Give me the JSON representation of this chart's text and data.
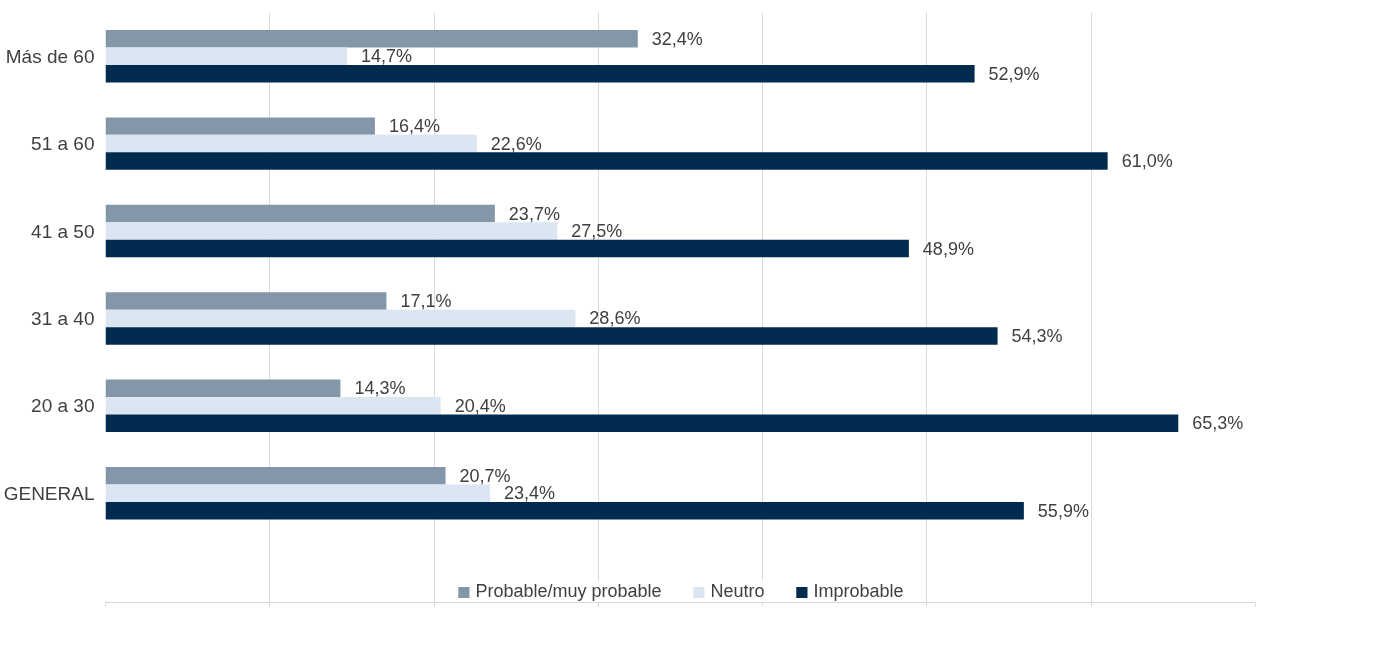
{
  "chart_data": {
    "type": "bar",
    "orientation": "horizontal",
    "categories": [
      "Más de 60",
      "51 a 60",
      "41 a 50",
      "31 a 40",
      "20 a 30",
      "GENERAL"
    ],
    "series": [
      {
        "name": "Probable/muy probable",
        "color": "#8497a8",
        "values": [
          32.4,
          16.4,
          23.7,
          17.1,
          14.3,
          20.7
        ],
        "value_labels": [
          "32,4%",
          "16,4%",
          "23,7%",
          "17,1%",
          "14,3%",
          "20,7%"
        ]
      },
      {
        "name": "Neutro",
        "color": "#dce6f2",
        "values": [
          14.7,
          22.6,
          27.5,
          28.6,
          20.4,
          23.4
        ],
        "value_labels": [
          "14,7%",
          "22,6%",
          "27,5%",
          "28,6%",
          "20,4%",
          "23,4%"
        ]
      },
      {
        "name": "Improbable",
        "color": "#002b4f",
        "values": [
          52.9,
          61.0,
          48.9,
          54.3,
          65.3,
          55.9
        ],
        "value_labels": [
          "52,9%",
          "61,0%",
          "48,9%",
          "54,3%",
          "65,3%",
          "55,9%"
        ]
      }
    ],
    "xlim": [
      0,
      70
    ],
    "xticks": [
      {
        "value": 0,
        "label": null
      },
      {
        "value": 10,
        "label": null
      },
      {
        "value": 20,
        "label": null
      },
      {
        "value": 30,
        "label": null
      },
      {
        "value": 40,
        "label": null
      },
      {
        "value": 50,
        "label": null
      },
      {
        "value": 60,
        "label": null
      },
      {
        "value": 70,
        "label": null
      }
    ],
    "grid": "x",
    "legend": "bottom",
    "tick_labels": "y"
  }
}
